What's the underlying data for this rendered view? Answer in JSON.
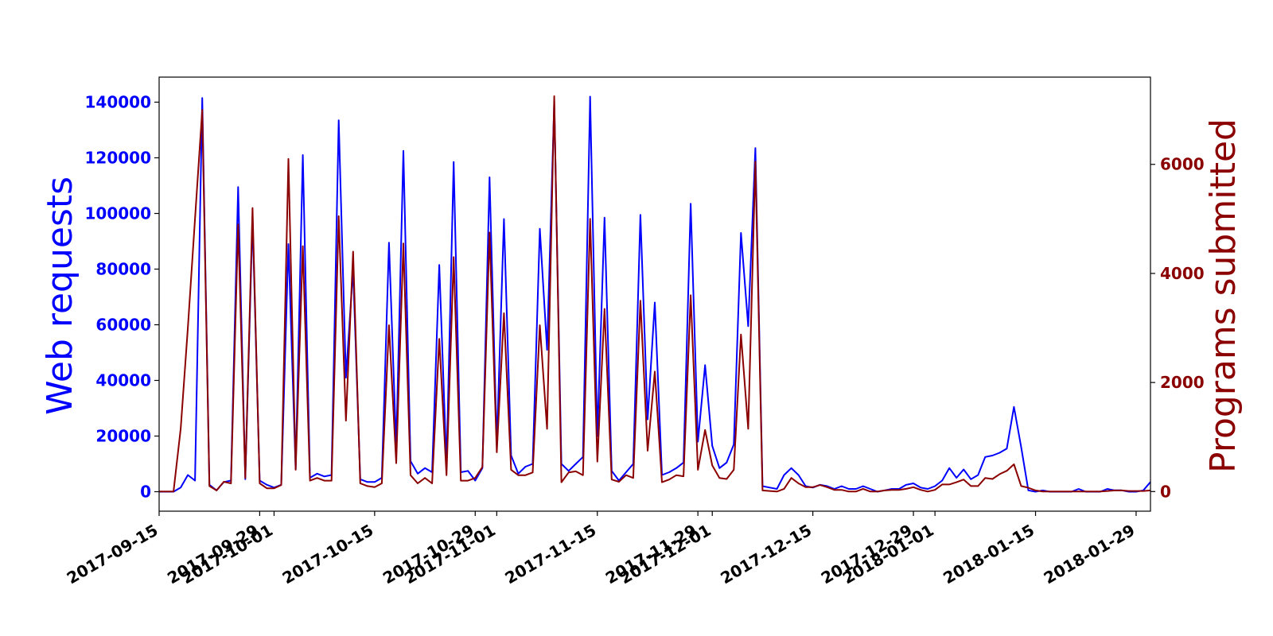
{
  "chart_data": {
    "type": "line",
    "x_start": "2017-09-15",
    "x_end": "2018-01-31",
    "xlabel_ticks": [
      "2017-09-15",
      "2017-09-29",
      "2017-10-01",
      "2017-10-15",
      "2017-10-29",
      "2017-11-01",
      "2017-11-15",
      "2017-11-29",
      "2017-12-01",
      "2017-12-15",
      "2017-12-29",
      "2018-01-01",
      "2018-01-15",
      "2018-01-29"
    ],
    "y_left": {
      "label": "Web requests",
      "lim": [
        -7000,
        149000
      ],
      "ticks": [
        0,
        20000,
        40000,
        60000,
        80000,
        100000,
        120000,
        140000
      ],
      "color": "#0000ff"
    },
    "y_right": {
      "label": "Programs submitted",
      "lim": [
        -360,
        7600
      ],
      "ticks": [
        0,
        2000,
        4000,
        6000
      ],
      "color": "#8b0000"
    },
    "grid": false,
    "series": [
      {
        "name": "Web requests",
        "axis": "left",
        "color": "#0000ff",
        "points": [
          [
            "2017-09-15",
            0
          ],
          [
            "2017-09-17",
            0
          ],
          [
            "2017-09-18",
            1500
          ],
          [
            "2017-09-19",
            6000
          ],
          [
            "2017-09-20",
            4000
          ],
          [
            "2017-09-21",
            141500
          ],
          [
            "2017-09-22",
            2500
          ],
          [
            "2017-09-23",
            500
          ],
          [
            "2017-09-24",
            3500
          ],
          [
            "2017-09-25",
            4000
          ],
          [
            "2017-09-26",
            109500
          ],
          [
            "2017-09-27",
            4500
          ],
          [
            "2017-09-28",
            98000
          ],
          [
            "2017-09-29",
            4000
          ],
          [
            "2017-09-30",
            2500
          ],
          [
            "2017-10-01",
            1500
          ],
          [
            "2017-10-02",
            2500
          ],
          [
            "2017-10-03",
            89000
          ],
          [
            "2017-10-04",
            8000
          ],
          [
            "2017-10-05",
            121000
          ],
          [
            "2017-10-06",
            5000
          ],
          [
            "2017-10-07",
            6500
          ],
          [
            "2017-10-08",
            5500
          ],
          [
            "2017-10-09",
            6000
          ],
          [
            "2017-10-10",
            133500
          ],
          [
            "2017-10-11",
            41000
          ],
          [
            "2017-10-12",
            80000
          ],
          [
            "2017-10-13",
            4500
          ],
          [
            "2017-10-14",
            3500
          ],
          [
            "2017-10-15",
            3500
          ],
          [
            "2017-10-16",
            5000
          ],
          [
            "2017-10-17",
            89500
          ],
          [
            "2017-10-18",
            16000
          ],
          [
            "2017-10-19",
            122500
          ],
          [
            "2017-10-20",
            11000
          ],
          [
            "2017-10-21",
            6500
          ],
          [
            "2017-10-22",
            8500
          ],
          [
            "2017-10-23",
            7000
          ],
          [
            "2017-10-24",
            81500
          ],
          [
            "2017-10-25",
            9500
          ],
          [
            "2017-10-26",
            118500
          ],
          [
            "2017-10-27",
            7000
          ],
          [
            "2017-10-28",
            7500
          ],
          [
            "2017-10-29",
            4000
          ],
          [
            "2017-10-30",
            8500
          ],
          [
            "2017-10-31",
            113000
          ],
          [
            "2017-11-01",
            17000
          ],
          [
            "2017-11-02",
            98000
          ],
          [
            "2017-11-03",
            13000
          ],
          [
            "2017-11-04",
            6500
          ],
          [
            "2017-11-05",
            9000
          ],
          [
            "2017-11-06",
            10000
          ],
          [
            "2017-11-07",
            94500
          ],
          [
            "2017-11-08",
            51000
          ],
          [
            "2017-11-09",
            140000
          ],
          [
            "2017-11-10",
            10000
          ],
          [
            "2017-11-11",
            7500
          ],
          [
            "2017-11-12",
            10000
          ],
          [
            "2017-11-13",
            12500
          ],
          [
            "2017-11-14",
            142000
          ],
          [
            "2017-11-15",
            20000
          ],
          [
            "2017-11-16",
            98500
          ],
          [
            "2017-11-17",
            7500
          ],
          [
            "2017-11-18",
            4000
          ],
          [
            "2017-11-19",
            7000
          ],
          [
            "2017-11-20",
            10000
          ],
          [
            "2017-11-21",
            99500
          ],
          [
            "2017-11-22",
            26000
          ],
          [
            "2017-11-23",
            68000
          ],
          [
            "2017-11-24",
            6000
          ],
          [
            "2017-11-25",
            7000
          ],
          [
            "2017-11-26",
            8500
          ],
          [
            "2017-11-27",
            10500
          ],
          [
            "2017-11-28",
            103500
          ],
          [
            "2017-11-29",
            18000
          ],
          [
            "2017-11-30",
            45500
          ],
          [
            "2017-12-01",
            16500
          ],
          [
            "2017-12-02",
            8500
          ],
          [
            "2017-12-03",
            10500
          ],
          [
            "2017-12-04",
            17000
          ],
          [
            "2017-12-05",
            93000
          ],
          [
            "2017-12-06",
            59500
          ],
          [
            "2017-12-07",
            123500
          ],
          [
            "2017-12-08",
            2000
          ],
          [
            "2017-12-09",
            1500
          ],
          [
            "2017-12-10",
            1000
          ],
          [
            "2017-12-11",
            6000
          ],
          [
            "2017-12-12",
            8500
          ],
          [
            "2017-12-13",
            6000
          ],
          [
            "2017-12-14",
            2000
          ],
          [
            "2017-12-15",
            1500
          ],
          [
            "2017-12-16",
            2500
          ],
          [
            "2017-12-17",
            2000
          ],
          [
            "2017-12-18",
            1000
          ],
          [
            "2017-12-19",
            2000
          ],
          [
            "2017-12-20",
            1000
          ],
          [
            "2017-12-21",
            1000
          ],
          [
            "2017-12-22",
            2000
          ],
          [
            "2017-12-23",
            1000
          ],
          [
            "2017-12-24",
            0
          ],
          [
            "2017-12-25",
            500
          ],
          [
            "2017-12-26",
            1000
          ],
          [
            "2017-12-27",
            1000
          ],
          [
            "2017-12-28",
            2500
          ],
          [
            "2017-12-29",
            3000
          ],
          [
            "2017-12-30",
            1500
          ],
          [
            "2017-12-31",
            1000
          ],
          [
            "2018-01-01",
            2000
          ],
          [
            "2018-01-02",
            4000
          ],
          [
            "2018-01-03",
            8500
          ],
          [
            "2018-01-04",
            5000
          ],
          [
            "2018-01-05",
            8000
          ],
          [
            "2018-01-06",
            4500
          ],
          [
            "2018-01-07",
            6000
          ],
          [
            "2018-01-08",
            12500
          ],
          [
            "2018-01-09",
            13000
          ],
          [
            "2018-01-10",
            14000
          ],
          [
            "2018-01-11",
            15500
          ],
          [
            "2018-01-12",
            30500
          ],
          [
            "2018-01-13",
            16000
          ],
          [
            "2018-01-14",
            500
          ],
          [
            "2018-01-15",
            0
          ],
          [
            "2018-01-16",
            500
          ],
          [
            "2018-01-17",
            0
          ],
          [
            "2018-01-18",
            0
          ],
          [
            "2018-01-19",
            0
          ],
          [
            "2018-01-20",
            0
          ],
          [
            "2018-01-21",
            1000
          ],
          [
            "2018-01-22",
            0
          ],
          [
            "2018-01-23",
            0
          ],
          [
            "2018-01-24",
            0
          ],
          [
            "2018-01-25",
            1000
          ],
          [
            "2018-01-26",
            500
          ],
          [
            "2018-01-27",
            500
          ],
          [
            "2018-01-28",
            0
          ],
          [
            "2018-01-29",
            0
          ],
          [
            "2018-01-30",
            500
          ],
          [
            "2018-01-31",
            3500
          ]
        ]
      },
      {
        "name": "Programs submitted",
        "axis": "right",
        "color": "#8b0000",
        "points": [
          [
            "2017-09-15",
            0
          ],
          [
            "2017-09-17",
            0
          ],
          [
            "2017-09-18",
            1150
          ],
          [
            "2017-09-19",
            3000
          ],
          [
            "2017-09-20",
            5000
          ],
          [
            "2017-09-21",
            7000
          ],
          [
            "2017-09-22",
            100
          ],
          [
            "2017-09-23",
            20
          ],
          [
            "2017-09-24",
            180
          ],
          [
            "2017-09-25",
            150
          ],
          [
            "2017-09-26",
            4900
          ],
          [
            "2017-09-27",
            250
          ],
          [
            "2017-09-28",
            5200
          ],
          [
            "2017-09-29",
            150
          ],
          [
            "2017-09-30",
            60
          ],
          [
            "2017-10-01",
            60
          ],
          [
            "2017-10-02",
            120
          ],
          [
            "2017-10-03",
            6100
          ],
          [
            "2017-10-04",
            400
          ],
          [
            "2017-10-05",
            4500
          ],
          [
            "2017-10-06",
            200
          ],
          [
            "2017-10-07",
            250
          ],
          [
            "2017-10-08",
            200
          ],
          [
            "2017-10-09",
            200
          ],
          [
            "2017-10-10",
            5050
          ],
          [
            "2017-10-11",
            1300
          ],
          [
            "2017-10-12",
            4400
          ],
          [
            "2017-10-13",
            150
          ],
          [
            "2017-10-14",
            100
          ],
          [
            "2017-10-15",
            80
          ],
          [
            "2017-10-16",
            150
          ],
          [
            "2017-10-17",
            3050
          ],
          [
            "2017-10-18",
            520
          ],
          [
            "2017-10-19",
            4550
          ],
          [
            "2017-10-20",
            300
          ],
          [
            "2017-10-21",
            150
          ],
          [
            "2017-10-22",
            250
          ],
          [
            "2017-10-23",
            150
          ],
          [
            "2017-10-24",
            2800
          ],
          [
            "2017-10-25",
            300
          ],
          [
            "2017-10-26",
            4300
          ],
          [
            "2017-10-27",
            200
          ],
          [
            "2017-10-28",
            200
          ],
          [
            "2017-10-29",
            250
          ],
          [
            "2017-10-30",
            450
          ],
          [
            "2017-10-31",
            4750
          ],
          [
            "2017-11-01",
            720
          ],
          [
            "2017-11-02",
            3270
          ],
          [
            "2017-11-03",
            400
          ],
          [
            "2017-11-04",
            300
          ],
          [
            "2017-11-05",
            300
          ],
          [
            "2017-11-06",
            350
          ],
          [
            "2017-11-07",
            3050
          ],
          [
            "2017-11-08",
            1150
          ],
          [
            "2017-11-09",
            7250
          ],
          [
            "2017-11-10",
            170
          ],
          [
            "2017-11-11",
            350
          ],
          [
            "2017-11-12",
            370
          ],
          [
            "2017-11-13",
            300
          ],
          [
            "2017-11-14",
            5000
          ],
          [
            "2017-11-15",
            550
          ],
          [
            "2017-11-16",
            3350
          ],
          [
            "2017-11-17",
            220
          ],
          [
            "2017-11-18",
            180
          ],
          [
            "2017-11-19",
            300
          ],
          [
            "2017-11-20",
            250
          ],
          [
            "2017-11-21",
            3500
          ],
          [
            "2017-11-22",
            750
          ],
          [
            "2017-11-23",
            2200
          ],
          [
            "2017-11-24",
            170
          ],
          [
            "2017-11-25",
            220
          ],
          [
            "2017-11-26",
            300
          ],
          [
            "2017-11-27",
            280
          ],
          [
            "2017-11-28",
            3600
          ],
          [
            "2017-11-29",
            400
          ],
          [
            "2017-11-30",
            1130
          ],
          [
            "2017-12-01",
            480
          ],
          [
            "2017-12-02",
            250
          ],
          [
            "2017-12-03",
            230
          ],
          [
            "2017-12-04",
            400
          ],
          [
            "2017-12-05",
            2880
          ],
          [
            "2017-12-06",
            1150
          ],
          [
            "2017-12-07",
            6050
          ],
          [
            "2017-12-08",
            20
          ],
          [
            "2017-12-09",
            10
          ],
          [
            "2017-12-10",
            0
          ],
          [
            "2017-12-11",
            50
          ],
          [
            "2017-12-12",
            250
          ],
          [
            "2017-12-13",
            150
          ],
          [
            "2017-12-14",
            80
          ],
          [
            "2017-12-15",
            80
          ],
          [
            "2017-12-16",
            120
          ],
          [
            "2017-12-17",
            80
          ],
          [
            "2017-12-18",
            30
          ],
          [
            "2017-12-19",
            30
          ],
          [
            "2017-12-20",
            0
          ],
          [
            "2017-12-21",
            0
          ],
          [
            "2017-12-22",
            50
          ],
          [
            "2017-12-23",
            0
          ],
          [
            "2017-12-24",
            0
          ],
          [
            "2017-12-25",
            20
          ],
          [
            "2017-12-26",
            30
          ],
          [
            "2017-12-27",
            30
          ],
          [
            "2017-12-28",
            50
          ],
          [
            "2017-12-29",
            80
          ],
          [
            "2017-12-30",
            30
          ],
          [
            "2017-12-31",
            0
          ],
          [
            "2018-01-01",
            30
          ],
          [
            "2018-01-02",
            130
          ],
          [
            "2018-01-03",
            130
          ],
          [
            "2018-01-04",
            170
          ],
          [
            "2018-01-05",
            220
          ],
          [
            "2018-01-06",
            100
          ],
          [
            "2018-01-07",
            100
          ],
          [
            "2018-01-08",
            250
          ],
          [
            "2018-01-09",
            230
          ],
          [
            "2018-01-10",
            320
          ],
          [
            "2018-01-11",
            380
          ],
          [
            "2018-01-12",
            500
          ],
          [
            "2018-01-13",
            100
          ],
          [
            "2018-01-14",
            70
          ],
          [
            "2018-01-15",
            20
          ],
          [
            "2018-01-16",
            0
          ],
          [
            "2018-01-17",
            0
          ],
          [
            "2018-01-18",
            0
          ],
          [
            "2018-01-19",
            0
          ],
          [
            "2018-01-20",
            0
          ],
          [
            "2018-01-21",
            0
          ],
          [
            "2018-01-22",
            0
          ],
          [
            "2018-01-23",
            0
          ],
          [
            "2018-01-24",
            0
          ],
          [
            "2018-01-25",
            10
          ],
          [
            "2018-01-26",
            20
          ],
          [
            "2018-01-27",
            20
          ],
          [
            "2018-01-28",
            10
          ],
          [
            "2018-01-29",
            10
          ],
          [
            "2018-01-30",
            10
          ],
          [
            "2018-01-31",
            20
          ]
        ]
      }
    ]
  }
}
